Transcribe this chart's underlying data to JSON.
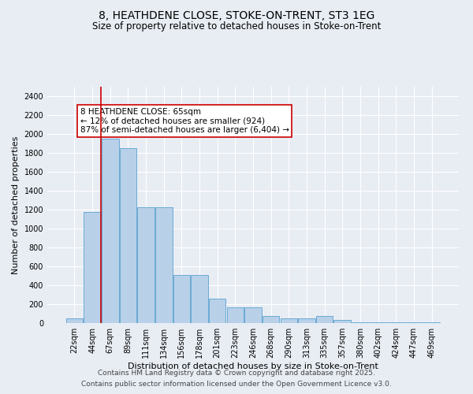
{
  "title_line1": "8, HEATHDENE CLOSE, STOKE-ON-TRENT, ST3 1EG",
  "title_line2": "Size of property relative to detached houses in Stoke-on-Trent",
  "xlabel": "Distribution of detached houses by size in Stoke-on-Trent",
  "ylabel": "Number of detached properties",
  "categories": [
    "22sqm",
    "44sqm",
    "67sqm",
    "89sqm",
    "111sqm",
    "134sqm",
    "156sqm",
    "178sqm",
    "201sqm",
    "223sqm",
    "246sqm",
    "268sqm",
    "290sqm",
    "313sqm",
    "335sqm",
    "357sqm",
    "380sqm",
    "402sqm",
    "424sqm",
    "447sqm",
    "469sqm"
  ],
  "values": [
    50,
    1175,
    1950,
    1850,
    1225,
    1225,
    510,
    510,
    255,
    165,
    165,
    75,
    50,
    50,
    75,
    30,
    10,
    10,
    5,
    5,
    5
  ],
  "bar_color": "#b8d0e8",
  "bar_edge_color": "#6aaad4",
  "vline_x": 1.5,
  "vline_color": "#cc0000",
  "annotation_text": "8 HEATHDENE CLOSE: 65sqm\n← 12% of detached houses are smaller (924)\n87% of semi-detached houses are larger (6,404) →",
  "annotation_box_color": "#ffffff",
  "annotation_box_edge": "#cc0000",
  "ylim": [
    0,
    2500
  ],
  "yticks": [
    0,
    200,
    400,
    600,
    800,
    1000,
    1200,
    1400,
    1600,
    1800,
    2000,
    2200,
    2400
  ],
  "background_color": "#e8edf4",
  "grid_color": "#ffffff",
  "footer_line1": "Contains HM Land Registry data © Crown copyright and database right 2025.",
  "footer_line2": "Contains public sector information licensed under the Open Government Licence v3.0.",
  "title_fontsize": 10,
  "subtitle_fontsize": 8.5,
  "axis_label_fontsize": 8,
  "tick_fontsize": 7,
  "annotation_fontsize": 7.5,
  "footer_fontsize": 6.5
}
